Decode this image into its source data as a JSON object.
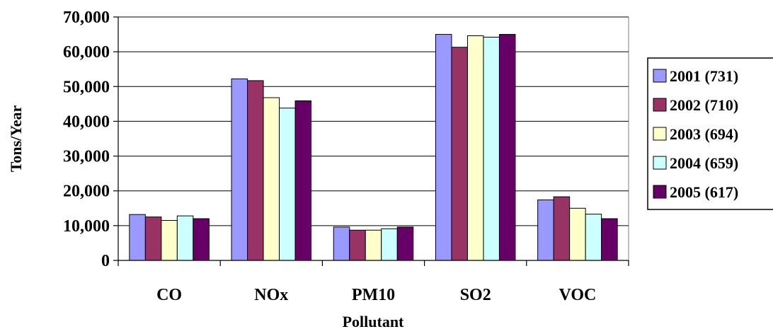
{
  "chart_data": {
    "type": "bar",
    "title": "",
    "xlabel": "Pollutant",
    "ylabel": "Tons/Year",
    "ylim": [
      0,
      70000
    ],
    "yticks": [
      0,
      10000,
      20000,
      30000,
      40000,
      50000,
      60000,
      70000
    ],
    "ytick_labels": [
      "0",
      "10,000",
      "20,000",
      "30,000",
      "40,000",
      "50,000",
      "60,000",
      "70,000"
    ],
    "grid": true,
    "legend_position": "right",
    "categories": [
      "CO",
      "NOx",
      "PM10",
      "SO2",
      "VOC"
    ],
    "series": [
      {
        "name": "2001 (731)",
        "color": "#9999ff",
        "values": [
          13200,
          52200,
          9600,
          65000,
          17400
        ]
      },
      {
        "name": "2002 (710)",
        "color": "#993366",
        "values": [
          12500,
          51700,
          8700,
          61300,
          18300
        ]
      },
      {
        "name": "2003 (694)",
        "color": "#ffffcc",
        "values": [
          11500,
          46800,
          8700,
          64600,
          15000
        ]
      },
      {
        "name": "2004 (659)",
        "color": "#ccffff",
        "values": [
          12800,
          43800,
          9100,
          64200,
          13300
        ]
      },
      {
        "name": "2005 (617)",
        "color": "#660066",
        "values": [
          12000,
          45900,
          9600,
          65000,
          12000
        ]
      }
    ]
  }
}
